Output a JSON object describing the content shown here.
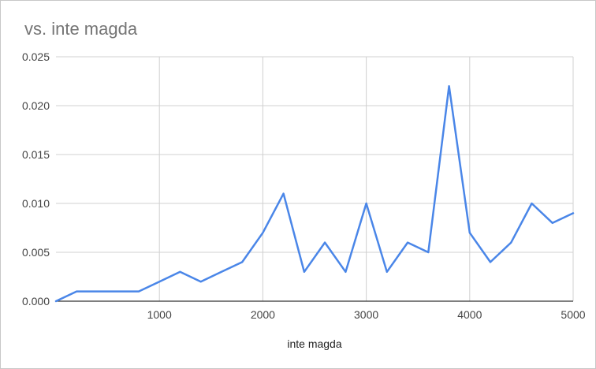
{
  "chart_data": {
    "type": "line",
    "title": "vs. inte magda",
    "xlabel": "inte magda",
    "ylabel": "",
    "xlim": [
      0,
      5000
    ],
    "ylim": [
      0,
      0.025
    ],
    "xticks": [
      1000,
      2000,
      3000,
      4000,
      5000
    ],
    "xtick_labels": [
      "1000",
      "2000",
      "3000",
      "4000",
      "5000"
    ],
    "yticks": [
      0,
      0.005,
      0.01,
      0.015,
      0.02,
      0.025
    ],
    "ytick_labels": [
      "0.000",
      "0.005",
      "0.010",
      "0.015",
      "0.020",
      "0.025"
    ],
    "grid": true,
    "legend": "none",
    "series": [
      {
        "name": "vs. inte magda",
        "color": "#4a86e8",
        "x": [
          0,
          200,
          400,
          600,
          800,
          1000,
          1200,
          1400,
          1600,
          1800,
          2000,
          2200,
          2400,
          2600,
          2800,
          3000,
          3200,
          3400,
          3600,
          3800,
          4000,
          4200,
          4400,
          4600,
          4800,
          5000
        ],
        "y": [
          0,
          0.001,
          0.001,
          0.001,
          0.001,
          0.002,
          0.003,
          0.002,
          0.003,
          0.004,
          0.007,
          0.011,
          0.003,
          0.006,
          0.003,
          0.01,
          0.003,
          0.006,
          0.005,
          0.022,
          0.007,
          0.004,
          0.006,
          0.01,
          0.008,
          0.009
        ]
      }
    ]
  },
  "colors": {
    "line": "#4a86e8",
    "grid": "#d0d0d0",
    "axis": "#333333",
    "title": "#757575"
  }
}
